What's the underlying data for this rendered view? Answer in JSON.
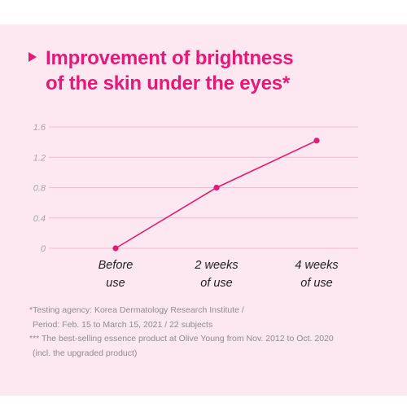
{
  "title_lines": [
    "Improvement of brightness",
    "of the skin under the eyes*"
  ],
  "chart_data": {
    "type": "line",
    "title": "Improvement of brightness of the skin under the eyes*",
    "categories": [
      [
        "Before",
        "use"
      ],
      [
        "2 weeks",
        "of use"
      ],
      [
        "4 weeks",
        "of use"
      ]
    ],
    "values": [
      0,
      0.8,
      1.42
    ],
    "yticks": [
      "0",
      "0.4",
      "0.8",
      "1.2",
      "1.6"
    ],
    "ylim": [
      0,
      1.6
    ],
    "grid": true,
    "color": "#e6197a"
  },
  "notes": {
    "line1": "*Testing agency: Korea Dermatology Research Institute /",
    "line2": "Period: Feb. 15 to March 15, 2021 / 22 subjects",
    "line3": "*** The best-selling essence product at Olive Young from Nov. 2012 to Oct. 2020",
    "line4": "(incl. the upgraded product)"
  }
}
